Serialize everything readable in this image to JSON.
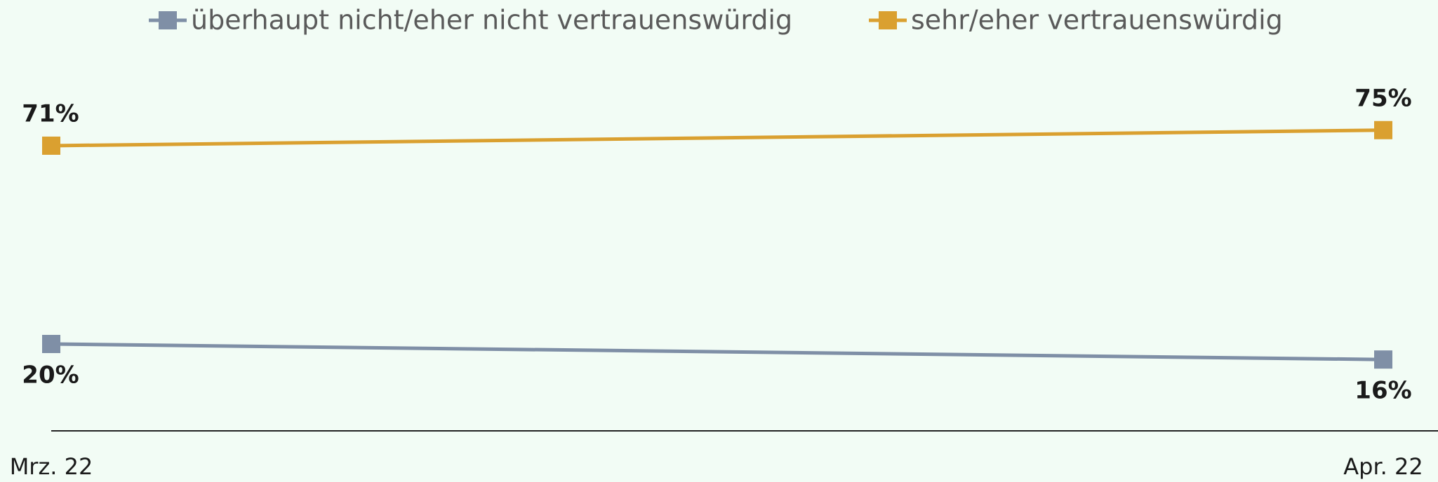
{
  "chart_data": {
    "type": "line",
    "categories": [
      "Mrz. 22",
      "Apr. 22"
    ],
    "series": [
      {
        "name": "überhaupt nicht/eher nicht vertrauenswürdig",
        "color": "#7f8fa6",
        "values": [
          20,
          16
        ],
        "value_labels": [
          "20%",
          "16%"
        ]
      },
      {
        "name": "sehr/eher vertrauenswürdig",
        "color": "#daa030",
        "values": [
          71,
          75
        ],
        "value_labels": [
          "71%",
          "75%"
        ]
      }
    ],
    "ylim": [
      0,
      100
    ]
  }
}
